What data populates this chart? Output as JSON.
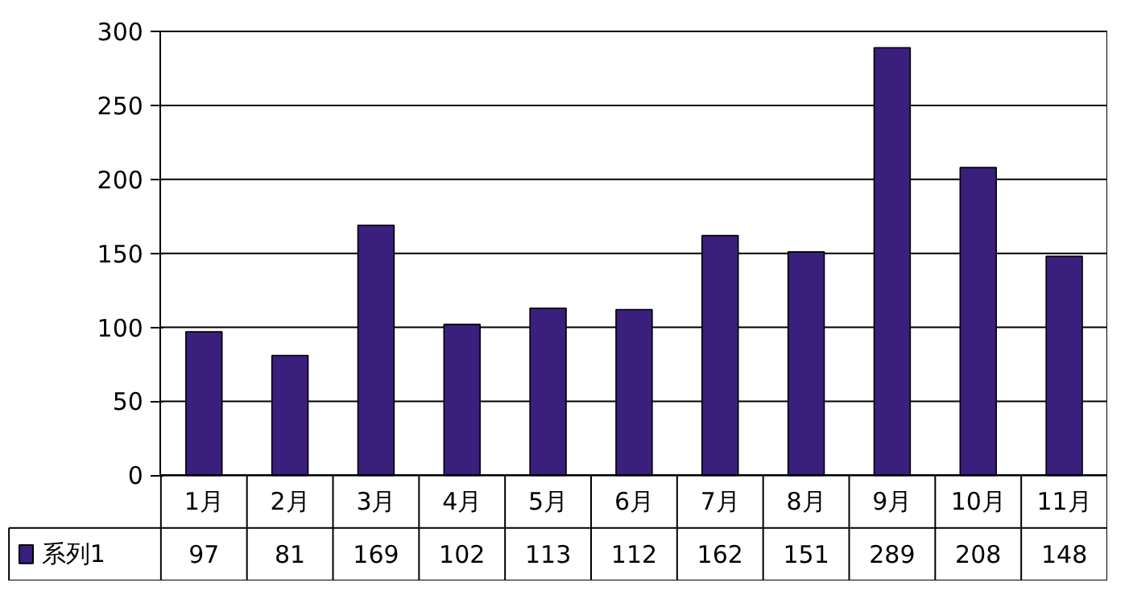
{
  "chart_data": {
    "type": "bar",
    "categories": [
      "1月",
      "2月",
      "3月",
      "4月",
      "5月",
      "6月",
      "7月",
      "8月",
      "9月",
      "10月",
      "11月"
    ],
    "series": [
      {
        "name": "系列1",
        "color": "#3a1f7c",
        "values": [
          97,
          81,
          169,
          102,
          113,
          112,
          162,
          151,
          289,
          208,
          148
        ]
      }
    ],
    "ylim": [
      0,
      300
    ],
    "yticks": [
      0,
      50,
      100,
      150,
      200,
      250,
      300
    ],
    "grid": "y",
    "legend": "bottom",
    "data_labels": true
  }
}
